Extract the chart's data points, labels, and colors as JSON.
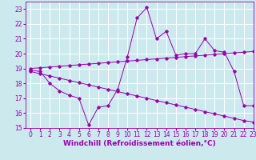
{
  "xlabel": "Windchill (Refroidissement éolien,°C)",
  "ylabel": "",
  "background_color": "#cce9ed",
  "line_color": "#9900aa",
  "grid_color": "#ffffff",
  "xlim": [
    -0.5,
    23
  ],
  "ylim": [
    15,
    23.5
  ],
  "xticks": [
    0,
    1,
    2,
    3,
    4,
    5,
    6,
    7,
    8,
    9,
    10,
    11,
    12,
    13,
    14,
    15,
    16,
    17,
    18,
    19,
    20,
    21,
    22,
    23
  ],
  "yticks": [
    15,
    16,
    17,
    18,
    19,
    20,
    21,
    22,
    23
  ],
  "line1_x": [
    0,
    1,
    2,
    3,
    4,
    5,
    6,
    7,
    8,
    9,
    10,
    11,
    12,
    13,
    14,
    15,
    16,
    17,
    18,
    19,
    20,
    21,
    22,
    23
  ],
  "line1_y": [
    18.9,
    18.8,
    18.0,
    17.5,
    17.2,
    17.0,
    15.2,
    16.4,
    16.5,
    17.6,
    19.8,
    22.4,
    23.1,
    21.0,
    21.5,
    19.9,
    20.0,
    20.0,
    21.0,
    20.2,
    20.1,
    18.8,
    16.5,
    16.5
  ],
  "line2_x": [
    0,
    1,
    2,
    3,
    4,
    5,
    6,
    7,
    8,
    9,
    10,
    11,
    12,
    13,
    14,
    15,
    16,
    17,
    18,
    19,
    20,
    21,
    22,
    23
  ],
  "line2_y": [
    19.0,
    19.05,
    19.1,
    19.15,
    19.2,
    19.25,
    19.3,
    19.35,
    19.4,
    19.45,
    19.5,
    19.55,
    19.6,
    19.65,
    19.7,
    19.75,
    19.8,
    19.85,
    19.9,
    19.95,
    20.0,
    20.05,
    20.1,
    20.15
  ],
  "line3_x": [
    0,
    1,
    2,
    3,
    4,
    5,
    6,
    7,
    8,
    9,
    10,
    11,
    12,
    13,
    14,
    15,
    16,
    17,
    18,
    19,
    20,
    21,
    22,
    23
  ],
  "line3_y": [
    18.8,
    18.65,
    18.5,
    18.35,
    18.2,
    18.05,
    17.9,
    17.75,
    17.6,
    17.45,
    17.3,
    17.15,
    17.0,
    16.85,
    16.7,
    16.55,
    16.4,
    16.25,
    16.1,
    15.95,
    15.8,
    15.65,
    15.5,
    15.4
  ],
  "tick_fontsize": 5.5,
  "xlabel_fontsize": 6.5
}
